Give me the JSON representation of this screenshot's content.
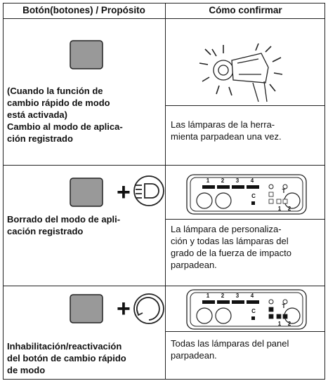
{
  "header": {
    "col1": "Botón(botones) / Propósito",
    "col2": "Cómo confirmar"
  },
  "rows": [
    {
      "purpose": [
        "(Cuando la función de",
        "cambio rápido de modo",
        "está activada)",
        "Cambio al modo de aplica-",
        "ción registrado"
      ],
      "confirm": [
        "Las lámparas de la herra-",
        "mienta parpadean una vez."
      ]
    },
    {
      "plus": "+",
      "purpose": [
        "Borrado del modo de apli-",
        "cación registrado"
      ],
      "panel": [
        "1",
        "2",
        "3",
        "4",
        "C",
        "T",
        "1",
        "2"
      ],
      "confirm": [
        "La lámpara de personaliza-",
        "ción y todas las lámparas del",
        "grado de la fuerza de impacto",
        "parpadean."
      ]
    },
    {
      "plus": "+",
      "purpose": [
        "Inhabilitación/reactivación",
        "del botón de cambio rápido",
        "de modo"
      ],
      "panel": [
        "1",
        "2",
        "3",
        "4",
        "C",
        "T",
        "1",
        "2"
      ],
      "confirm": [
        "Todas las lámparas del panel",
        "parpadean."
      ]
    }
  ]
}
